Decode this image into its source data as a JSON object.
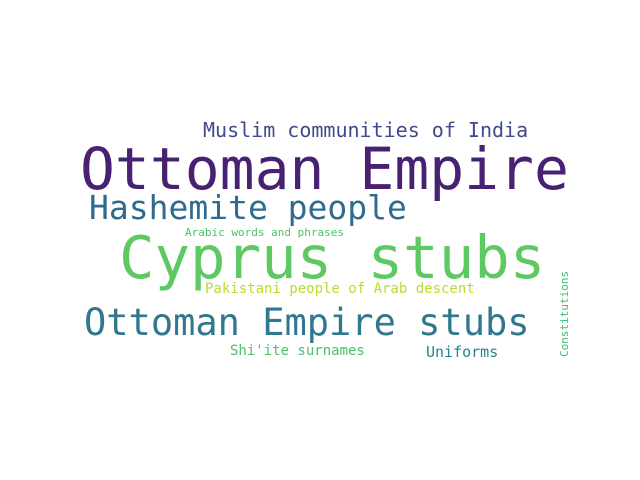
{
  "words": [
    {
      "text": "Muslim communities of India",
      "color": "#3e4b8a"
    },
    {
      "text": "Ottoman Empire",
      "color": "#482173"
    },
    {
      "text": "Hashemite people",
      "color": "#2f6b8e"
    },
    {
      "text": "Arabic words and phrases",
      "color": "#4cc26c"
    },
    {
      "text": "Cyprus stubs",
      "color": "#5ec962"
    },
    {
      "text": "Pakistani people of Arab descent",
      "color": "#b5de2b"
    },
    {
      "text": "Ottoman Empire stubs",
      "color": "#31788e"
    },
    {
      "text": "Shi'ite surnames",
      "color": "#4ac16d"
    },
    {
      "text": "Uniforms",
      "color": "#26838f"
    },
    {
      "text": "Constitutions",
      "color": "#3bbb75"
    }
  ]
}
